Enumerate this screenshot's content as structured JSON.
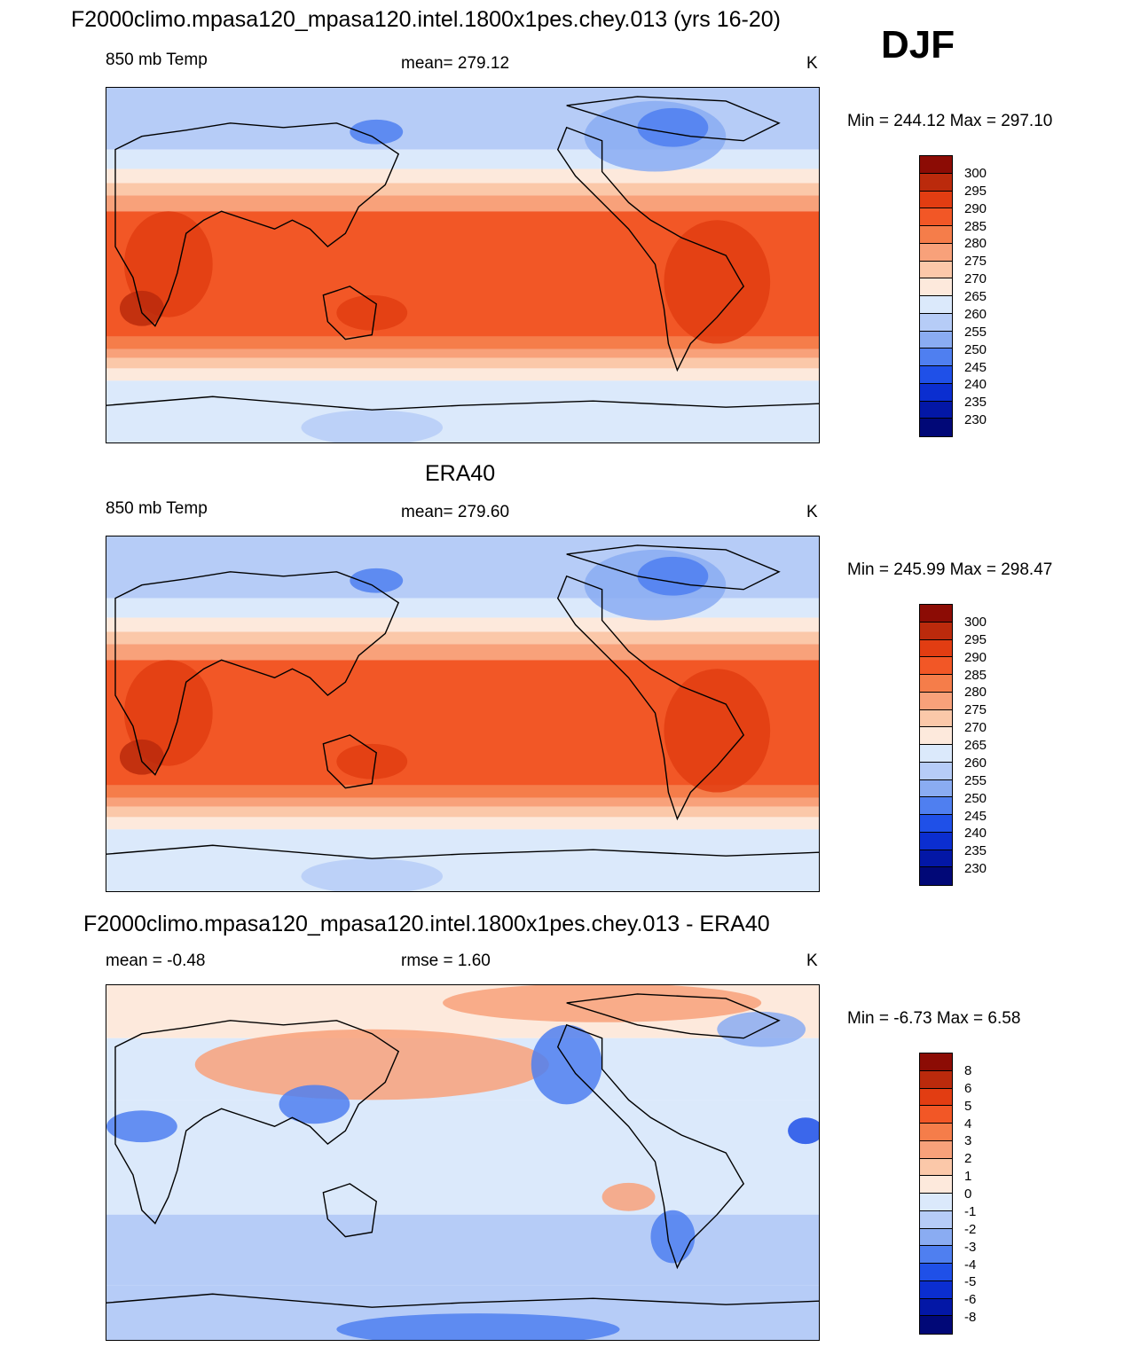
{
  "header": {
    "title": "F2000climo.mpasa120_mpasa120.intel.1800x1pes.chey.013 (yrs 16-20)",
    "season": "DJF"
  },
  "panels": [
    {
      "title": "",
      "left": "850 mb Temp",
      "center": "mean= 279.12",
      "units": "K",
      "minmax": "Min = 244.12 Max = 297.10",
      "legend_labels": [
        "300",
        "295",
        "290",
        "285",
        "280",
        "275",
        "270",
        "265",
        "260",
        "255",
        "250",
        "245",
        "240",
        "235",
        "230"
      ],
      "legend_colors": [
        "#8c0c05",
        "#bb2a0c",
        "#e23d12",
        "#f25726",
        "#f57d4a",
        "#f8a17a",
        "#fbc8a9",
        "#fde9dc",
        "#dbe9fb",
        "#b6ccf7",
        "#8aacf2",
        "#4f7ff0",
        "#1f50e8",
        "#0b2ed0",
        "#0317a6",
        "#010877"
      ],
      "field": "temp"
    },
    {
      "title": "ERA40",
      "left": "850 mb Temp",
      "center": "mean= 279.60",
      "units": "K",
      "minmax": "Min = 245.99 Max = 298.47",
      "legend_labels": [
        "300",
        "295",
        "290",
        "285",
        "280",
        "275",
        "270",
        "265",
        "260",
        "255",
        "250",
        "245",
        "240",
        "235",
        "230"
      ],
      "legend_colors": [
        "#8c0c05",
        "#bb2a0c",
        "#e23d12",
        "#f25726",
        "#f57d4a",
        "#f8a17a",
        "#fbc8a9",
        "#fde9dc",
        "#dbe9fb",
        "#b6ccf7",
        "#8aacf2",
        "#4f7ff0",
        "#1f50e8",
        "#0b2ed0",
        "#0317a6",
        "#010877"
      ],
      "field": "temp"
    },
    {
      "title": "F2000climo.mpasa120_mpasa120.intel.1800x1pes.chey.013 - ERA40",
      "left": "mean =  -0.48",
      "center": "rmse =   1.60",
      "units": "K",
      "minmax": "Min =  -6.73 Max =   6.58",
      "legend_labels": [
        "8",
        "6",
        "5",
        "4",
        "3",
        "2",
        "1",
        "0",
        "-1",
        "-2",
        "-3",
        "-4",
        "-5",
        "-6",
        "-8"
      ],
      "legend_colors": [
        "#8c0c05",
        "#bb2a0c",
        "#e23d12",
        "#f25726",
        "#f57d4a",
        "#f8a17a",
        "#fbc8a9",
        "#fde9dc",
        "#dbe9fb",
        "#b6ccf7",
        "#8aacf2",
        "#4f7ff0",
        "#1f50e8",
        "#0b2ed0",
        "#0317a6",
        "#010877"
      ],
      "field": "diff"
    }
  ]
}
